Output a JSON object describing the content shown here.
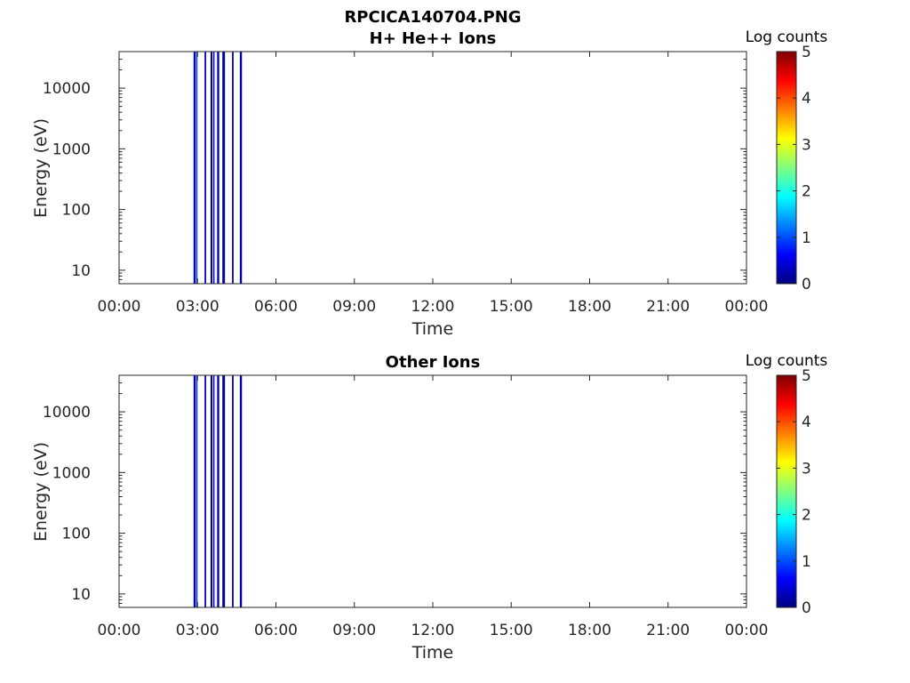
{
  "figure_title": "RPCICA140704.PNG",
  "chart_data": [
    {
      "type": "heatmap",
      "title": "H+ He++ Ions",
      "xlabel": "Time",
      "ylabel": "Energy (eV)",
      "x_ticks": [
        "00:00",
        "03:00",
        "06:00",
        "09:00",
        "12:00",
        "15:00",
        "18:00",
        "21:00",
        "00:00"
      ],
      "xlim_hours": [
        0,
        24
      ],
      "y_ticks": [
        "10",
        "100",
        "1000",
        "10000"
      ],
      "y_scale": "log",
      "ylim": [
        6,
        40000
      ],
      "colorbar": {
        "label": "Log counts",
        "ticks": [
          "0",
          "1",
          "2",
          "3",
          "4",
          "5"
        ],
        "range": [
          0,
          5
        ],
        "colormap": "jet"
      },
      "data_stripes": [
        {
          "start_hour": 2.85,
          "end_hour": 2.93,
          "log_counts": 0.3
        },
        {
          "start_hour": 2.95,
          "end_hour": 3.0,
          "log_counts": 1.0
        },
        {
          "start_hour": 3.27,
          "end_hour": 3.33,
          "log_counts": 0.4
        },
        {
          "start_hour": 3.5,
          "end_hour": 3.57,
          "log_counts": 0.2
        },
        {
          "start_hour": 3.6,
          "end_hour": 3.65,
          "log_counts": 0.6
        },
        {
          "start_hour": 3.75,
          "end_hour": 3.83,
          "log_counts": 0.25
        },
        {
          "start_hour": 3.95,
          "end_hour": 4.05,
          "log_counts": 0.15
        },
        {
          "start_hour": 4.32,
          "end_hour": 4.38,
          "log_counts": 0.3
        },
        {
          "start_hour": 4.62,
          "end_hour": 4.7,
          "log_counts": 0.2
        }
      ]
    },
    {
      "type": "heatmap",
      "title": "Other Ions",
      "xlabel": "Time",
      "ylabel": "Energy (eV)",
      "x_ticks": [
        "00:00",
        "03:00",
        "06:00",
        "09:00",
        "12:00",
        "15:00",
        "18:00",
        "21:00",
        "00:00"
      ],
      "xlim_hours": [
        0,
        24
      ],
      "y_ticks": [
        "10",
        "100",
        "1000",
        "10000"
      ],
      "y_scale": "log",
      "ylim": [
        6,
        40000
      ],
      "colorbar": {
        "label": "Log counts",
        "ticks": [
          "0",
          "1",
          "2",
          "3",
          "4",
          "5"
        ],
        "range": [
          0,
          5
        ],
        "colormap": "jet"
      },
      "data_stripes": [
        {
          "start_hour": 2.85,
          "end_hour": 2.93,
          "log_counts": 0.3
        },
        {
          "start_hour": 2.95,
          "end_hour": 3.0,
          "log_counts": 0.9
        },
        {
          "start_hour": 3.27,
          "end_hour": 3.33,
          "log_counts": 0.4
        },
        {
          "start_hour": 3.5,
          "end_hour": 3.57,
          "log_counts": 0.2
        },
        {
          "start_hour": 3.6,
          "end_hour": 3.65,
          "log_counts": 0.6
        },
        {
          "start_hour": 3.75,
          "end_hour": 3.83,
          "log_counts": 0.25
        },
        {
          "start_hour": 3.95,
          "end_hour": 4.05,
          "log_counts": 0.1
        },
        {
          "start_hour": 4.32,
          "end_hour": 4.38,
          "log_counts": 0.3
        },
        {
          "start_hour": 4.62,
          "end_hour": 4.7,
          "log_counts": 0.2
        }
      ]
    }
  ]
}
